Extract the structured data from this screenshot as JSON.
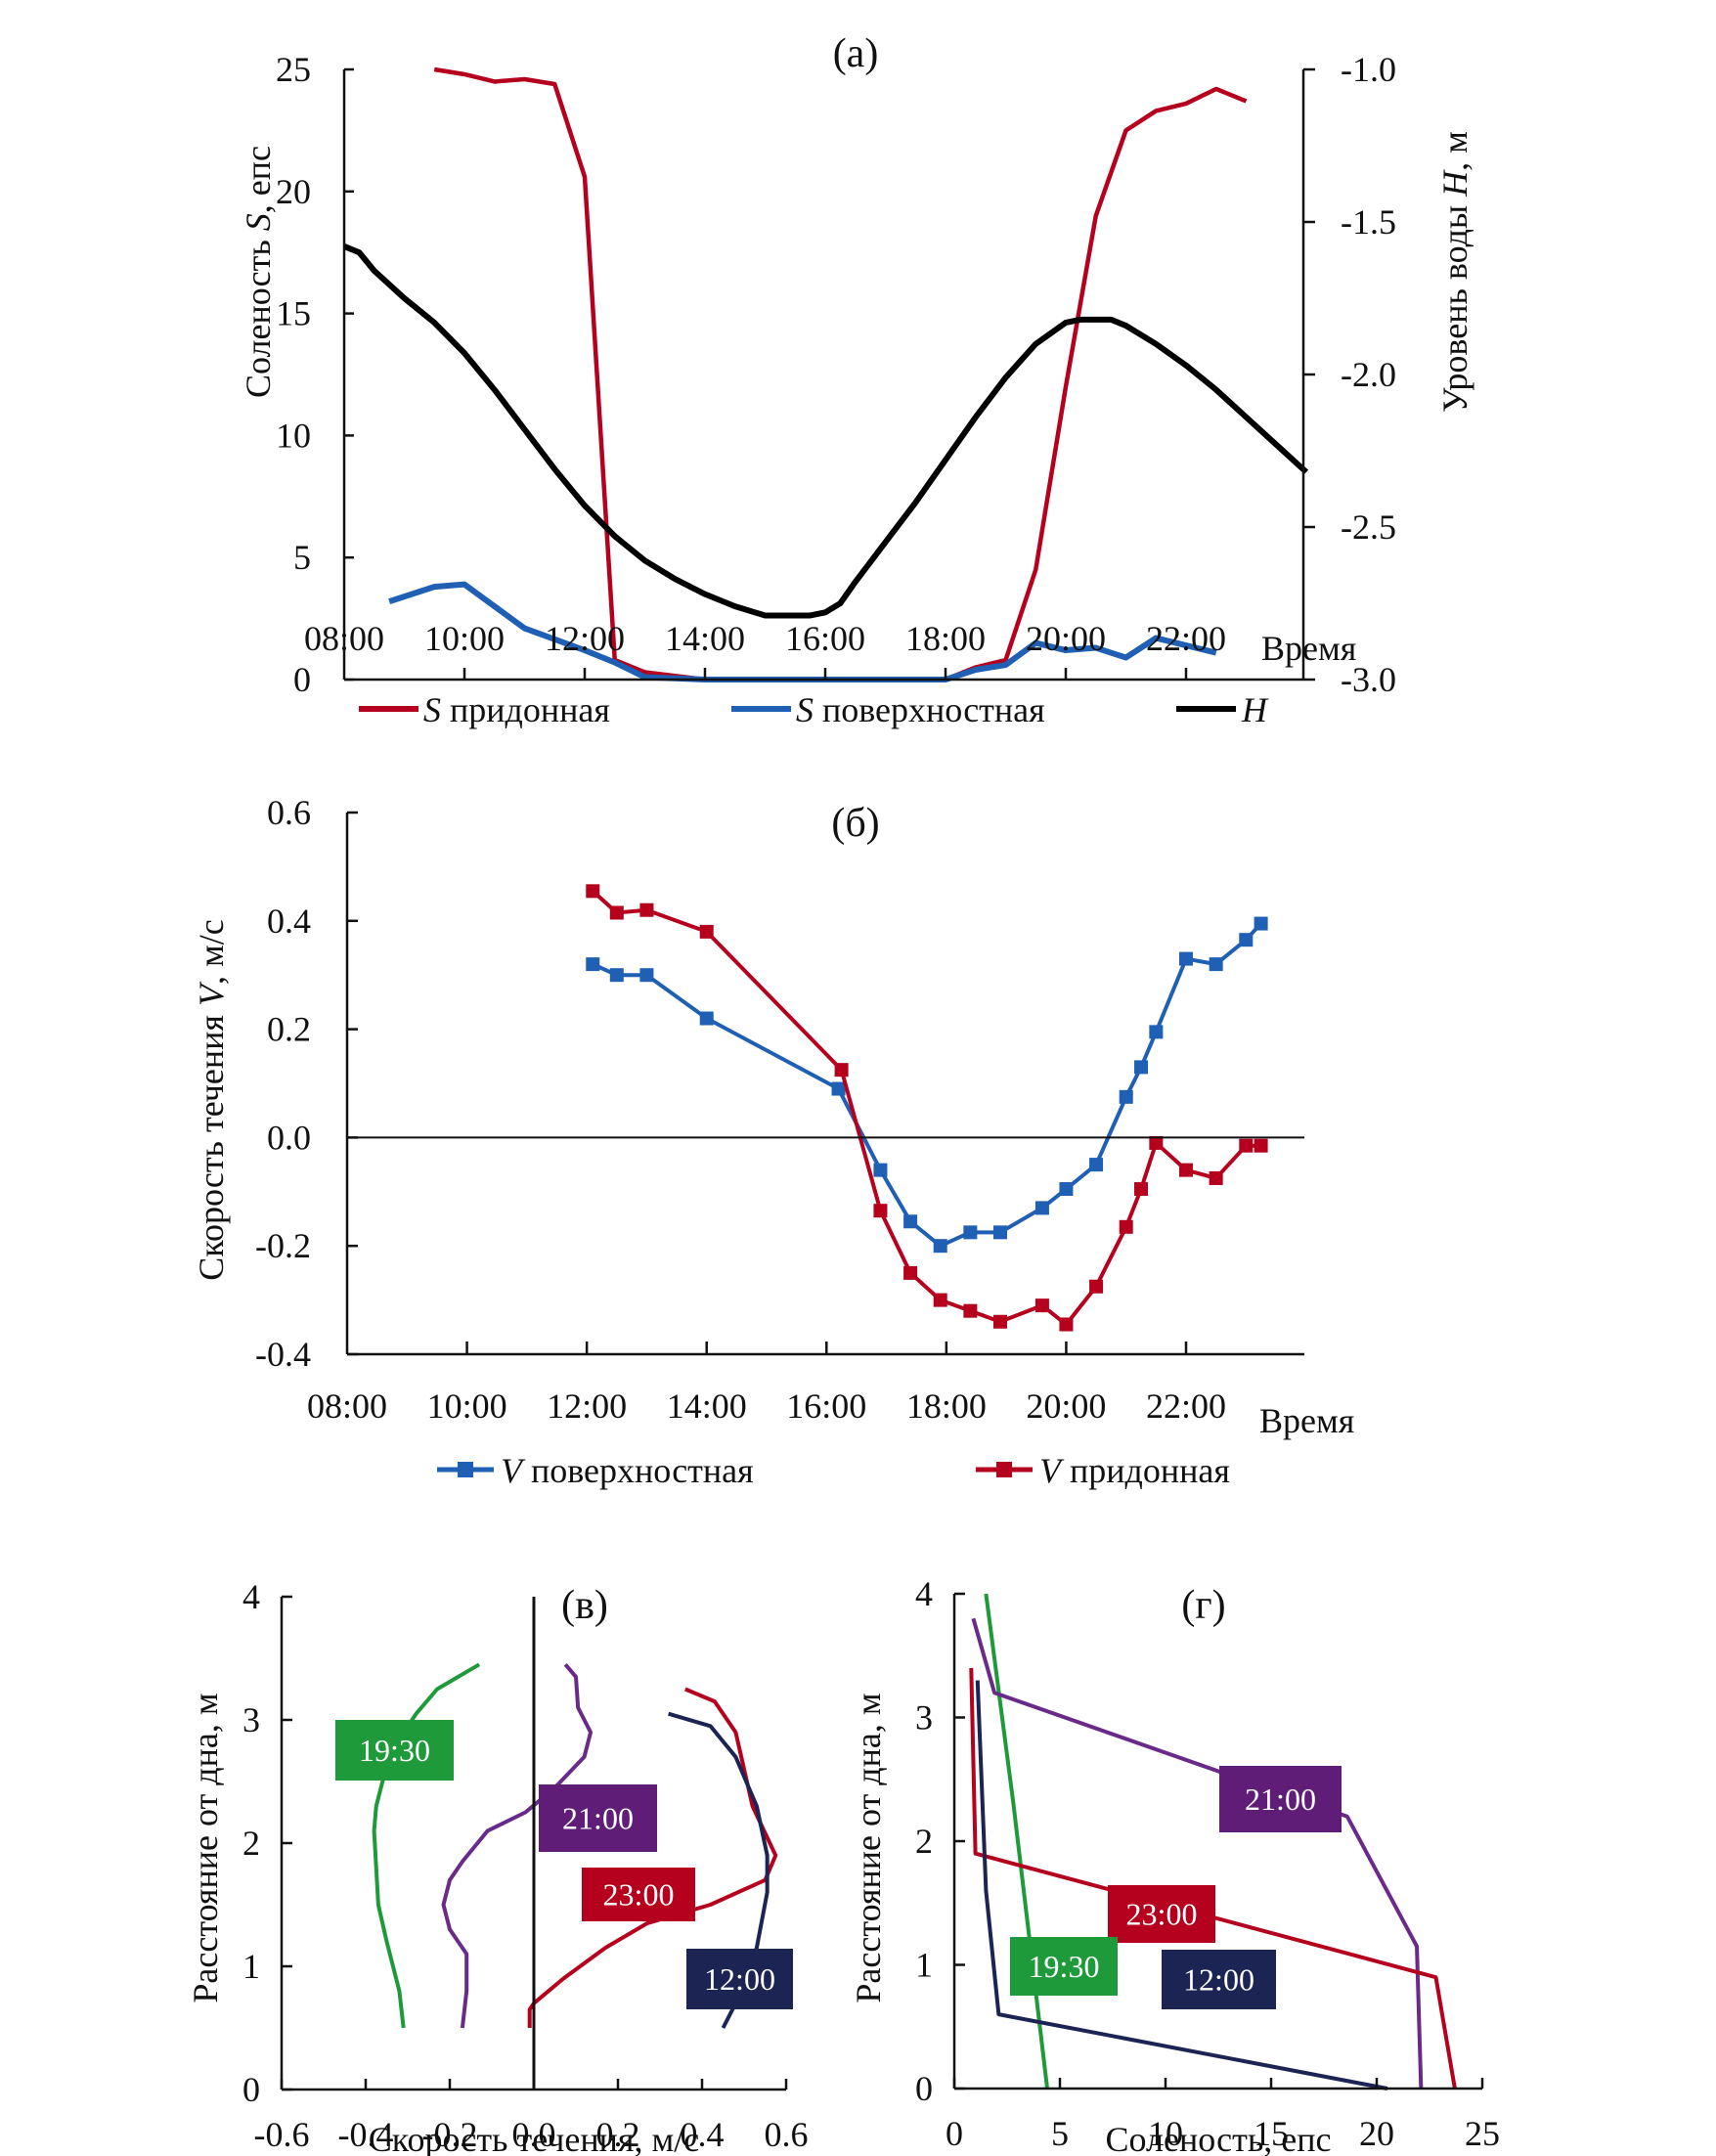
{
  "chart_data": [
    {
      "id": "a",
      "type": "line",
      "title": "(a)",
      "xlabel": "Время",
      "ylabel": "Соленость S, епс",
      "ylabel_parts": [
        "Соленость ",
        "S",
        ", епс"
      ],
      "y2label": "Уровень воды H, м",
      "y2label_parts": [
        "Уровень воды ",
        "H",
        ", м"
      ],
      "x_ticks": [
        "08:00",
        "10:00",
        "12:00",
        "14:00",
        "16:00",
        "18:00",
        "20:00",
        "22:00"
      ],
      "xlim_hours": [
        8,
        25
      ],
      "ylim": [
        0,
        25
      ],
      "y_ticks": [
        "0",
        "5",
        "10",
        "15",
        "20",
        "25"
      ],
      "y2lim": [
        -3.0,
        -1.0
      ],
      "y2_ticks": [
        "-3.0",
        "-2.5",
        "-2.0",
        "-1.5",
        "-1.0"
      ],
      "legend": [
        {
          "italic": "S",
          "text": " придонная",
          "color": "#b5001e"
        },
        {
          "italic": "S",
          "text": " поверхностная",
          "color": "#1f5fb4"
        },
        {
          "italic": "H",
          "text": "",
          "color": "#000000"
        }
      ],
      "series": [
        {
          "name": "S придонная",
          "axis": "left",
          "color": "#b5001e",
          "x": [
            9.5,
            10,
            10.5,
            11,
            11.5,
            12,
            12.5,
            13,
            14,
            15,
            16,
            17,
            18,
            18.5,
            19,
            19.5,
            20,
            20.5,
            21,
            21.5,
            22,
            22.5,
            23
          ],
          "y": [
            25,
            24.8,
            24.5,
            24.6,
            24.4,
            20.6,
            0.8,
            0.3,
            0,
            0,
            0,
            0,
            0,
            0.5,
            0.8,
            4.5,
            12,
            19,
            22.5,
            23.3,
            23.6,
            24.2,
            23.7
          ]
        },
        {
          "name": "S поверхностная",
          "axis": "left",
          "color": "#1f5fb4",
          "x": [
            8.75,
            9.5,
            10,
            11,
            12,
            12.5,
            13,
            14,
            15,
            16,
            17,
            18,
            18.5,
            19,
            19.5,
            20,
            20.5,
            21,
            21.5,
            22,
            22.5
          ],
          "y": [
            3.2,
            3.8,
            3.9,
            2.1,
            1.2,
            0.7,
            0.1,
            0,
            0,
            0,
            0,
            0,
            0.4,
            0.6,
            1.5,
            1.2,
            1.3,
            0.9,
            1.7,
            1.4,
            1.1
          ]
        },
        {
          "name": "H",
          "axis": "right",
          "color": "#000000",
          "x": [
            8,
            8.25,
            8.5,
            9,
            9.5,
            10,
            10.5,
            11,
            11.5,
            12,
            12.5,
            13,
            13.5,
            14,
            14.5,
            15,
            15.25,
            15.5,
            15.75,
            16,
            16.25,
            16.5,
            17,
            17.5,
            18,
            18.5,
            19,
            19.5,
            20,
            20.25,
            20.5,
            20.75,
            21,
            21.5,
            22,
            22.5,
            23,
            23.5,
            24
          ],
          "y": [
            -1.58,
            -1.6,
            -1.66,
            -1.75,
            -1.83,
            -1.93,
            -2.05,
            -2.18,
            -2.31,
            -2.43,
            -2.53,
            -2.61,
            -2.67,
            -2.72,
            -2.76,
            -2.79,
            -2.79,
            -2.79,
            -2.79,
            -2.78,
            -2.75,
            -2.68,
            -2.55,
            -2.42,
            -2.28,
            -2.14,
            -2.01,
            -1.9,
            -1.83,
            -1.82,
            -1.82,
            -1.82,
            -1.84,
            -1.9,
            -1.97,
            -2.05,
            -2.14,
            -2.23,
            -2.32
          ]
        }
      ]
    },
    {
      "id": "b",
      "type": "line",
      "title": "(б)",
      "xlabel": "Время",
      "ylabel": "Скорость течения V, м/с",
      "ylabel_parts": [
        "Скорость течения ",
        "V",
        ", м/с"
      ],
      "x_ticks": [
        "08:00",
        "10:00",
        "12:00",
        "14:00",
        "16:00",
        "18:00",
        "20:00",
        "22:00"
      ],
      "xlim_hours": [
        8,
        25.5
      ],
      "ylim": [
        -0.4,
        0.6
      ],
      "y_ticks": [
        "-0.4",
        "-0.2",
        "0.0",
        "0.2",
        "0.4",
        "0.6"
      ],
      "legend": [
        {
          "italic": "V",
          "text": " поверхностная",
          "color": "#1f5fb4"
        },
        {
          "italic": "V",
          "text": " придонная",
          "color": "#b5001e"
        }
      ],
      "series": [
        {
          "name": "V поверхностная",
          "color": "#1f5fb4",
          "marker": "square",
          "x": [
            12.1,
            12.5,
            13,
            14,
            16.2,
            16.9,
            17.4,
            17.9,
            18.4,
            18.9,
            19.6,
            20,
            20.5,
            21,
            21.25,
            21.5,
            22,
            22.5,
            23,
            23.25
          ],
          "y": [
            0.32,
            0.3,
            0.3,
            0.22,
            0.09,
            -0.06,
            -0.155,
            -0.2,
            -0.175,
            -0.175,
            -0.13,
            -0.095,
            -0.05,
            0.075,
            0.13,
            0.195,
            0.33,
            0.32,
            0.365,
            0.395
          ]
        },
        {
          "name": "V придонная",
          "color": "#b5001e",
          "marker": "square",
          "x": [
            12.1,
            12.5,
            13,
            14,
            16.25,
            16.9,
            17.4,
            17.9,
            18.4,
            18.9,
            19.6,
            20,
            20.5,
            21,
            21.25,
            21.5,
            22,
            22.5,
            23,
            23.25
          ],
          "y": [
            0.455,
            0.415,
            0.42,
            0.38,
            0.125,
            -0.135,
            -0.25,
            -0.3,
            -0.32,
            -0.34,
            -0.31,
            -0.345,
            -0.275,
            -0.165,
            -0.095,
            -0.01,
            -0.06,
            -0.075,
            -0.015,
            -0.015
          ]
        }
      ]
    },
    {
      "id": "c",
      "type": "line",
      "title": "(в)",
      "xlabel": "Скорость течения, м/с",
      "ylabel": "Расстояние от дна, м",
      "xlim": [
        -0.6,
        0.6
      ],
      "ylim": [
        0,
        4
      ],
      "x_ticks": [
        "-0.6",
        "-0.4",
        "-0.2",
        "0.0",
        "0.2",
        "0.4",
        "0.6"
      ],
      "y_ticks": [
        "0",
        "1",
        "2",
        "3",
        "4"
      ],
      "series": [
        {
          "name": "19:30",
          "color": "#1f9a3a",
          "x": [
            -0.31,
            -0.32,
            -0.35,
            -0.37,
            -0.375,
            -0.38,
            -0.375,
            -0.36,
            -0.33,
            -0.28,
            -0.23,
            -0.13
          ],
          "y": [
            0.5,
            0.8,
            1.2,
            1.5,
            1.8,
            2.1,
            2.3,
            2.5,
            2.8,
            3.05,
            3.25,
            3.45
          ]
        },
        {
          "name": "21:00",
          "color": "#6a2a8a",
          "x": [
            -0.17,
            -0.16,
            -0.16,
            -0.2,
            -0.215,
            -0.2,
            -0.17,
            -0.11,
            -0.02,
            0.05,
            0.12,
            0.135,
            0.105,
            0.1,
            0.075
          ],
          "y": [
            0.5,
            0.8,
            1.1,
            1.3,
            1.5,
            1.7,
            1.85,
            2.1,
            2.25,
            2.45,
            2.7,
            2.9,
            3.1,
            3.35,
            3.45
          ]
        },
        {
          "name": "23:00",
          "color": "#b5001e",
          "x": [
            -0.01,
            -0.01,
            0.0,
            0.07,
            0.17,
            0.27,
            0.42,
            0.55,
            0.575,
            0.52,
            0.48,
            0.43,
            0.36
          ],
          "y": [
            0.5,
            0.65,
            0.7,
            0.9,
            1.15,
            1.35,
            1.5,
            1.7,
            1.9,
            2.3,
            2.9,
            3.15,
            3.25
          ]
        },
        {
          "name": "12:00",
          "color": "#1c2453",
          "x": [
            0.45,
            0.48,
            0.53,
            0.555,
            0.555,
            0.53,
            0.48,
            0.42,
            0.32
          ],
          "y": [
            0.5,
            0.7,
            1.15,
            1.6,
            1.9,
            2.3,
            2.7,
            2.95,
            3.05
          ]
        }
      ],
      "labels": [
        {
          "text": "19:30",
          "color": "#1f9a3a"
        },
        {
          "text": "21:00",
          "color": "#5f1d78"
        },
        {
          "text": "23:00",
          "color": "#b5001e"
        },
        {
          "text": "12:00",
          "color": "#1c2453"
        }
      ]
    },
    {
      "id": "d",
      "type": "line",
      "title": "(г)",
      "xlabel": "Соленость, епс",
      "ylabel": "Расстояние от дна, м",
      "xlim": [
        0,
        25
      ],
      "ylim": [
        0,
        4
      ],
      "x_ticks": [
        "0",
        "5",
        "10",
        "15",
        "20",
        "25"
      ],
      "y_ticks": [
        "0",
        "1",
        "2",
        "3",
        "4"
      ],
      "series": [
        {
          "name": "19:30",
          "color": "#1f9a3a",
          "x": [
            1.5,
            2.8,
            4.4
          ],
          "y": [
            4.0,
            2.3,
            0.0
          ]
        },
        {
          "name": "21:00",
          "color": "#6a2a8a",
          "x": [
            0.9,
            1.9,
            18.6,
            21.9,
            22.1
          ],
          "y": [
            3.8,
            3.2,
            2.2,
            1.15,
            0.0
          ]
        },
        {
          "name": "23:00",
          "color": "#b5001e",
          "x": [
            0.8,
            1.0,
            22.8,
            23.7
          ],
          "y": [
            3.4,
            1.9,
            0.9,
            0.0
          ]
        },
        {
          "name": "12:00",
          "color": "#1c2453",
          "x": [
            1.1,
            1.5,
            2.1,
            20.5
          ],
          "y": [
            3.3,
            1.6,
            0.6,
            0.0
          ]
        }
      ],
      "labels": [
        {
          "text": "21:00",
          "color": "#5f1d78"
        },
        {
          "text": "23:00",
          "color": "#b5001e"
        },
        {
          "text": "19:30",
          "color": "#1f9a3a"
        },
        {
          "text": "12:00",
          "color": "#1c2453"
        }
      ]
    }
  ]
}
